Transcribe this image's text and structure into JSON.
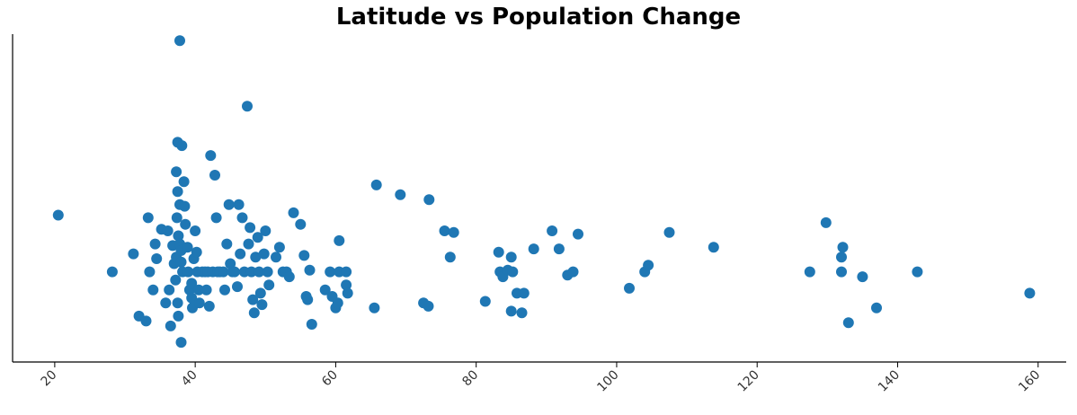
{
  "chart_data": {
    "type": "scatter",
    "title": "Latitude vs Population Change",
    "xlabel": "",
    "ylabel": "",
    "xlim": [
      14,
      164
    ],
    "ylim": [
      0,
      100
    ],
    "x_ticks": [
      20,
      40,
      60,
      80,
      100,
      120,
      140,
      160
    ],
    "x_tick_labels": [
      "20",
      "40",
      "60",
      "80",
      "100",
      "120",
      "140",
      "160"
    ],
    "y_ticks_visible": false,
    "grid": false,
    "marker_color": "#1f77b4",
    "points": [
      [
        20.5,
        44.8
      ],
      [
        28.2,
        27.5
      ],
      [
        31.2,
        33.0
      ],
      [
        32.0,
        14.0
      ],
      [
        33.0,
        12.5
      ],
      [
        33.3,
        44.0
      ],
      [
        33.5,
        27.5
      ],
      [
        34.0,
        22.0
      ],
      [
        34.3,
        36.0
      ],
      [
        34.5,
        31.5
      ],
      [
        35.2,
        40.5
      ],
      [
        35.8,
        18.0
      ],
      [
        36.1,
        40.0
      ],
      [
        36.3,
        22.0
      ],
      [
        36.5,
        11.0
      ],
      [
        36.8,
        35.5
      ],
      [
        37.0,
        30.0
      ],
      [
        37.2,
        25.0
      ],
      [
        37.3,
        32.0
      ],
      [
        37.5,
        18.0
      ],
      [
        37.6,
        14.0
      ],
      [
        37.5,
        67.0
      ],
      [
        37.3,
        58.0
      ],
      [
        37.5,
        52.0
      ],
      [
        37.8,
        48.0
      ],
      [
        37.4,
        44.0
      ],
      [
        37.6,
        38.5
      ],
      [
        37.8,
        36.0
      ],
      [
        38.0,
        34.0
      ],
      [
        38.0,
        30.5
      ],
      [
        38.2,
        27.5
      ],
      [
        37.8,
        98.0
      ],
      [
        38.1,
        66.0
      ],
      [
        38.0,
        6.0
      ],
      [
        38.4,
        55.0
      ],
      [
        38.5,
        47.5
      ],
      [
        38.6,
        42.0
      ],
      [
        38.9,
        35.0
      ],
      [
        39.0,
        27.5
      ],
      [
        39.2,
        22.0
      ],
      [
        39.5,
        19.5
      ],
      [
        39.5,
        24.0
      ],
      [
        39.6,
        16.5
      ],
      [
        39.8,
        31.5
      ],
      [
        40.0,
        40.0
      ],
      [
        40.2,
        33.5
      ],
      [
        40.3,
        27.5
      ],
      [
        40.5,
        22.0
      ],
      [
        40.6,
        18.0
      ],
      [
        41.0,
        27.5
      ],
      [
        41.4,
        27.5
      ],
      [
        41.6,
        22.0
      ],
      [
        41.8,
        27.5
      ],
      [
        42.0,
        17.0
      ],
      [
        42.2,
        63.0
      ],
      [
        42.5,
        27.5
      ],
      [
        42.8,
        57.0
      ],
      [
        43.0,
        44.0
      ],
      [
        43.2,
        27.5
      ],
      [
        43.5,
        27.5
      ],
      [
        44.0,
        27.5
      ],
      [
        44.2,
        22.0
      ],
      [
        44.5,
        36.0
      ],
      [
        44.8,
        48.0
      ],
      [
        45.0,
        30.0
      ],
      [
        45.3,
        27.5
      ],
      [
        45.6,
        27.5
      ],
      [
        46.0,
        23.0
      ],
      [
        46.2,
        48.0
      ],
      [
        46.4,
        33.0
      ],
      [
        46.7,
        44.0
      ],
      [
        47.0,
        27.5
      ],
      [
        47.4,
        78.0
      ],
      [
        47.6,
        36.0
      ],
      [
        47.8,
        41.0
      ],
      [
        48.0,
        27.5
      ],
      [
        48.2,
        19.0
      ],
      [
        48.4,
        15.0
      ],
      [
        48.6,
        32.0
      ],
      [
        48.9,
        38.0
      ],
      [
        49.1,
        27.5
      ],
      [
        49.3,
        21.0
      ],
      [
        49.5,
        17.5
      ],
      [
        49.8,
        33.0
      ],
      [
        50.0,
        40.0
      ],
      [
        50.3,
        27.5
      ],
      [
        50.5,
        23.5
      ],
      [
        51.5,
        32.0
      ],
      [
        52.0,
        35.0
      ],
      [
        52.5,
        27.5
      ],
      [
        53.0,
        27.5
      ],
      [
        53.4,
        26.0
      ],
      [
        54.0,
        45.5
      ],
      [
        55.0,
        42.0
      ],
      [
        55.5,
        32.5
      ],
      [
        55.8,
        20.0
      ],
      [
        56.0,
        19.0
      ],
      [
        56.3,
        28.0
      ],
      [
        56.6,
        11.5
      ],
      [
        58.5,
        22.0
      ],
      [
        59.2,
        27.5
      ],
      [
        59.5,
        20.0
      ],
      [
        60.0,
        16.5
      ],
      [
        60.3,
        18.0
      ],
      [
        60.5,
        37.0
      ],
      [
        60.5,
        27.5
      ],
      [
        61.5,
        27.5
      ],
      [
        61.5,
        23.5
      ],
      [
        61.7,
        21.0
      ],
      [
        65.5,
        16.5
      ],
      [
        65.8,
        54.0
      ],
      [
        69.2,
        51.0
      ],
      [
        72.5,
        18.0
      ],
      [
        73.2,
        17.0
      ],
      [
        73.3,
        49.5
      ],
      [
        75.5,
        40.0
      ],
      [
        76.3,
        32.0
      ],
      [
        76.8,
        39.5
      ],
      [
        81.3,
        18.5
      ],
      [
        83.2,
        33.5
      ],
      [
        83.4,
        27.5
      ],
      [
        83.8,
        26.0
      ],
      [
        84.5,
        28.0
      ],
      [
        85.0,
        32.0
      ],
      [
        85.0,
        15.5
      ],
      [
        85.2,
        27.5
      ],
      [
        85.8,
        21.0
      ],
      [
        86.5,
        15.0
      ],
      [
        86.8,
        21.0
      ],
      [
        88.2,
        34.5
      ],
      [
        90.8,
        40.0
      ],
      [
        91.8,
        34.5
      ],
      [
        93.0,
        26.5
      ],
      [
        93.8,
        27.5
      ],
      [
        94.5,
        39.0
      ],
      [
        101.8,
        22.5
      ],
      [
        104.0,
        27.5
      ],
      [
        104.5,
        29.5
      ],
      [
        107.5,
        39.5
      ],
      [
        113.8,
        35.0
      ],
      [
        127.5,
        27.5
      ],
      [
        129.8,
        42.5
      ],
      [
        132.0,
        32.0
      ],
      [
        132.0,
        27.5
      ],
      [
        132.2,
        35.0
      ],
      [
        133.0,
        12.0
      ],
      [
        135.0,
        26.0
      ],
      [
        137.0,
        16.5
      ],
      [
        142.8,
        27.5
      ],
      [
        158.8,
        21.0
      ]
    ]
  }
}
